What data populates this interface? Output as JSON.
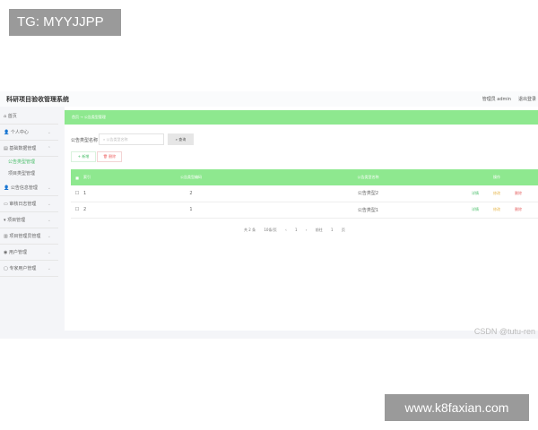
{
  "watermarks": {
    "tg": "TG: MYYJJPP",
    "site": "www.k8faxian.com",
    "csdn": "CSDN @tutu-ren"
  },
  "header": {
    "title": "科研项目验收管理系统",
    "user": "管理员 admin",
    "logout": "退出登录"
  },
  "sidebar": {
    "items": [
      {
        "label": "首页",
        "icon": "home-icon"
      },
      {
        "label": "个人中心",
        "icon": "user-icon"
      },
      {
        "label": "基础数据管理",
        "icon": "data-icon"
      },
      {
        "label": "公告信息管理",
        "icon": "user-icon"
      },
      {
        "label": "审核日志管理",
        "icon": "log-icon"
      },
      {
        "label": "项目管理",
        "icon": "project-icon"
      },
      {
        "label": "项目管理员管理",
        "icon": "admin-icon"
      },
      {
        "label": "用户管理",
        "icon": "users-icon"
      },
      {
        "label": "专家用户管理",
        "icon": "expert-icon"
      }
    ],
    "subitems": [
      {
        "label": "公告类型管理",
        "active": true
      },
      {
        "label": "项目类型管理",
        "active": false
      }
    ]
  },
  "breadcrumb": {
    "home": "首页",
    "sep": "→",
    "current": "公告类型管理"
  },
  "search": {
    "label": "公告类型名称",
    "placeholder": "公告类型名称",
    "button": "查询"
  },
  "actions": {
    "add": "新增",
    "delete": "删除"
  },
  "table": {
    "columns": [
      "索引",
      "公告类型编码",
      "公告类型名称",
      "操作"
    ],
    "rows": [
      {
        "index": "1",
        "code": "2",
        "name": "公告类型2"
      },
      {
        "index": "2",
        "code": "1",
        "name": "公告类型1"
      }
    ],
    "row_actions": {
      "detail": "详情",
      "edit": "修改",
      "delete": "删除"
    }
  },
  "pagination": {
    "total": "共 2 条",
    "page_size": "10条/页",
    "prev": "‹",
    "page": "1",
    "next": "›",
    "goto": "前往",
    "goto_value": "1",
    "page_unit": "页"
  },
  "colors": {
    "accent": "#8ee88f",
    "active": "#4bbf6b",
    "danger": "#e66666",
    "warning": "#e6b64c"
  }
}
